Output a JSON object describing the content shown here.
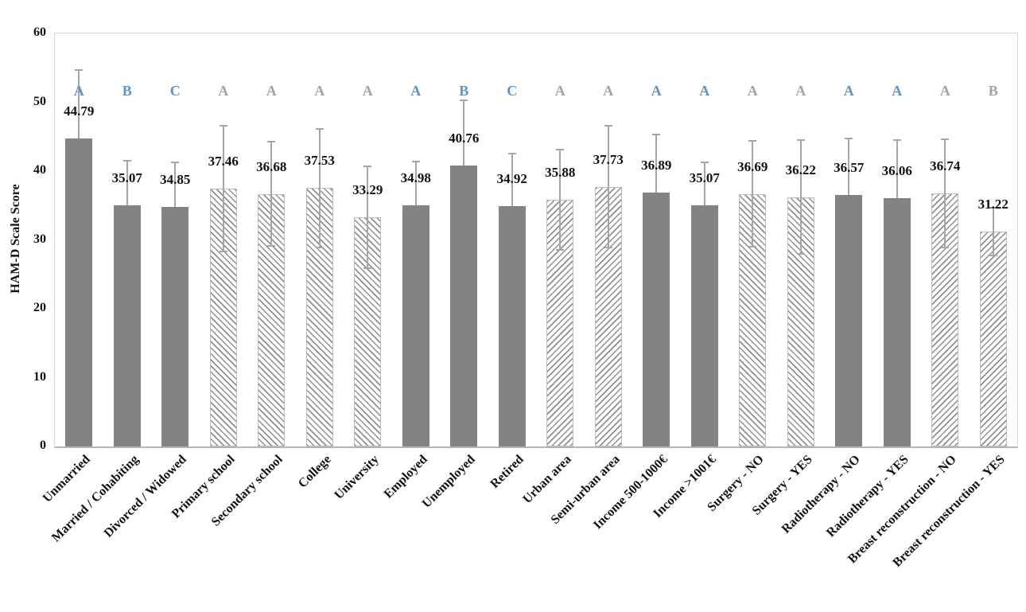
{
  "figure": {
    "ylabel": "HAM-D Scale Score",
    "colors": {
      "solid_bar": "#838383",
      "hatch_line": "#8f8f8f",
      "hatch_border": "#bcbcbc",
      "error_bar": "#a6a6a6",
      "letter_blue": "#5b93cd",
      "letter_gray": "#a3a3a3",
      "axis_border": "#d6d6d6",
      "axis_line": "#b5b5b5",
      "text": "#111111"
    }
  },
  "chart_data": {
    "type": "bar",
    "title": "",
    "xlabel": "",
    "ylabel": "HAM-D Scale Score",
    "ylim": [
      0,
      60
    ],
    "y_ticks": [
      0,
      10,
      20,
      30,
      40,
      50,
      60
    ],
    "grid": false,
    "legend": false,
    "categories": [
      "Unmarried",
      "Married / Cohabiting",
      "Divorced / Widowed",
      "Primary school",
      "Secondary school",
      "College",
      "University",
      "Employed",
      "Unemployed",
      "Retired",
      "Urban area",
      "Semi-urban area",
      "Income 500-1000€",
      "Income >1001€",
      "Surgery - NO",
      "Surgery - YES",
      "Radiotherapy - NO",
      "Radiotherapy - YES",
      "Breast reconstruction - NO",
      "Breast reconstruction - YES"
    ],
    "values": [
      44.79,
      35.07,
      34.85,
      37.46,
      36.68,
      37.53,
      33.29,
      34.98,
      40.76,
      34.92,
      35.88,
      37.73,
      36.89,
      35.07,
      36.69,
      36.22,
      36.57,
      36.06,
      36.74,
      31.22
    ],
    "value_labels": [
      "44.79",
      "35.07",
      "34.85",
      "37.46",
      "36.68",
      "37.53",
      "33.29",
      "34.98",
      "40.76",
      "34.92",
      "35.88",
      "37.73",
      "36.89",
      "35.07",
      "36.69",
      "36.22",
      "36.57",
      "36.06",
      "36.74",
      "31.22"
    ],
    "error_bars": [
      10.0,
      6.6,
      6.5,
      9.2,
      7.7,
      8.7,
      7.5,
      6.5,
      9.6,
      7.7,
      7.4,
      9.0,
      8.5,
      6.3,
      7.8,
      8.4,
      8.3,
      8.6,
      8.0,
      3.6
    ],
    "bar_styles": [
      "solid",
      "solid",
      "solid",
      "hatch-back",
      "hatch-back",
      "hatch-back",
      "hatch-back",
      "solid",
      "solid",
      "solid",
      "hatch-fwd",
      "hatch-fwd",
      "solid",
      "solid",
      "hatch-back",
      "hatch-back",
      "solid",
      "solid",
      "hatch-fwd",
      "hatch-fwd"
    ],
    "significance_letters": [
      {
        "label": "A",
        "color": "blue"
      },
      {
        "label": "B",
        "color": "blue"
      },
      {
        "label": "C",
        "color": "blue"
      },
      {
        "label": "A",
        "color": "gray"
      },
      {
        "label": "A",
        "color": "gray"
      },
      {
        "label": "A",
        "color": "gray"
      },
      {
        "label": "A",
        "color": "gray"
      },
      {
        "label": "A",
        "color": "blue"
      },
      {
        "label": "B",
        "color": "blue"
      },
      {
        "label": "C",
        "color": "blue"
      },
      {
        "label": "A",
        "color": "gray"
      },
      {
        "label": "A",
        "color": "gray"
      },
      {
        "label": "A",
        "color": "blue"
      },
      {
        "label": "A",
        "color": "blue"
      },
      {
        "label": "A",
        "color": "gray"
      },
      {
        "label": "A",
        "color": "gray"
      },
      {
        "label": "A",
        "color": "blue"
      },
      {
        "label": "A",
        "color": "blue"
      },
      {
        "label": "A",
        "color": "gray"
      },
      {
        "label": "B",
        "color": "gray"
      }
    ]
  }
}
